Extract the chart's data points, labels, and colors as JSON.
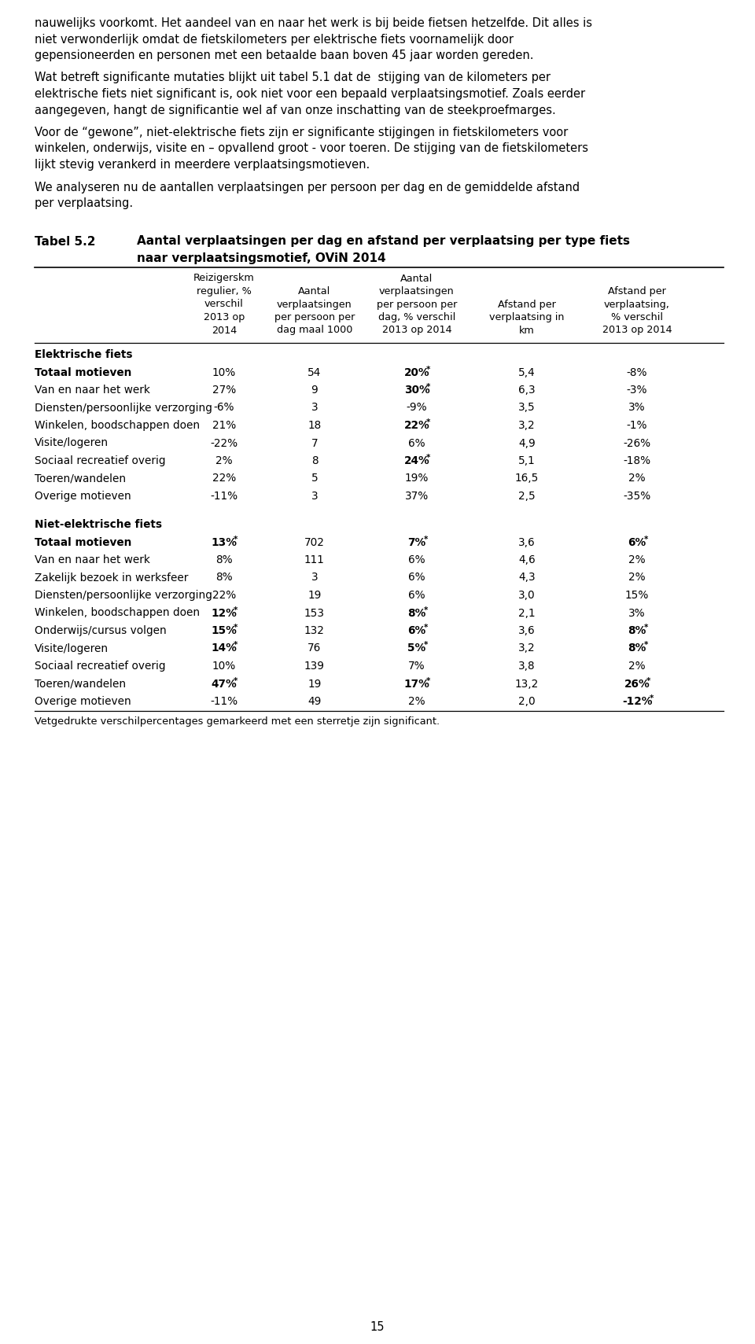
{
  "page_text": [
    "nauwelijks voorkomt. Het aandeel van en naar het werk is bij beide fietsen hetzelfde. Dit alles is",
    "niet verwonderlijk omdat de fietskilometers per elektrische fiets voornamelijk door",
    "gepensioneerden en personen met een betaalde baan boven 45 jaar worden gereden.",
    "",
    "Wat betreft significante mutaties blijkt uit tabel 5.1 dat de  stijging van de kilometers per",
    "elektrische fiets niet significant is, ook niet voor een bepaald verplaatsingsmotief. Zoals eerder",
    "aangegeven, hangt de significantie wel af van onze inschatting van de steekproefmarges.",
    "",
    "Voor de “gewone”, niet-elektrische fiets zijn er significante stijgingen in fietskilometers voor",
    "winkelen, onderwijs, visite en – opvallend groot - voor toeren. De stijging van de fietskilometers",
    "lijkt stevig verankerd in meerdere verplaatsingsmotieven.",
    "",
    "We analyseren nu de aantallen verplaatsingen per persoon per dag en de gemiddelde afstand",
    "per verplaatsing."
  ],
  "tabel_label": "Tabel 5.2",
  "tabel_title_line1": "Aantal verplaatsingen per dag en afstand per verplaatsing per type fiets",
  "tabel_title_line2": "naar verplaatsingsmotief, OViN 2014",
  "col_headers": [
    [
      "Reizigerskm",
      "regulier, %",
      "verschil",
      "2013 op",
      "2014"
    ],
    [
      "Aantal",
      "verplaatsingen",
      "per persoon per",
      "dag maal 1000"
    ],
    [
      "Aantal",
      "verplaatsingen",
      "per persoon per",
      "dag, % verschil",
      "2013 op 2014"
    ],
    [
      "Afstand per",
      "verplaatsing in",
      "km"
    ],
    [
      "Afstand per",
      "verplaatsing,",
      "% verschil",
      "2013 op 2014"
    ]
  ],
  "section1_label": "Elektrische fiets",
  "section1_rows": [
    {
      "label": "Totaal motieven",
      "bold_label": true,
      "cols": [
        {
          "text": "10%",
          "bold": false,
          "star": false
        },
        {
          "text": "54",
          "bold": false,
          "star": false
        },
        {
          "text": "20%",
          "bold": true,
          "star": true
        },
        {
          "text": "5,4",
          "bold": false,
          "star": false
        },
        {
          "text": "-8%",
          "bold": false,
          "star": false
        }
      ]
    },
    {
      "label": "Van en naar het werk",
      "bold_label": false,
      "cols": [
        {
          "text": "27%",
          "bold": false,
          "star": false
        },
        {
          "text": "9",
          "bold": false,
          "star": false
        },
        {
          "text": "30%",
          "bold": true,
          "star": true
        },
        {
          "text": "6,3",
          "bold": false,
          "star": false
        },
        {
          "text": "-3%",
          "bold": false,
          "star": false
        }
      ]
    },
    {
      "label": "Diensten/persoonlijke verzorging",
      "bold_label": false,
      "cols": [
        {
          "text": "-6%",
          "bold": false,
          "star": false
        },
        {
          "text": "3",
          "bold": false,
          "star": false
        },
        {
          "text": "-9%",
          "bold": false,
          "star": false
        },
        {
          "text": "3,5",
          "bold": false,
          "star": false
        },
        {
          "text": "3%",
          "bold": false,
          "star": false
        }
      ]
    },
    {
      "label": "Winkelen, boodschappen doen",
      "bold_label": false,
      "cols": [
        {
          "text": "21%",
          "bold": false,
          "star": false
        },
        {
          "text": "18",
          "bold": false,
          "star": false
        },
        {
          "text": "22%",
          "bold": true,
          "star": true
        },
        {
          "text": "3,2",
          "bold": false,
          "star": false
        },
        {
          "text": "-1%",
          "bold": false,
          "star": false
        }
      ]
    },
    {
      "label": "Visite/logeren",
      "bold_label": false,
      "cols": [
        {
          "text": "-22%",
          "bold": false,
          "star": false
        },
        {
          "text": "7",
          "bold": false,
          "star": false
        },
        {
          "text": "6%",
          "bold": false,
          "star": false
        },
        {
          "text": "4,9",
          "bold": false,
          "star": false
        },
        {
          "text": "-26%",
          "bold": false,
          "star": false
        }
      ]
    },
    {
      "label": "Sociaal recreatief overig",
      "bold_label": false,
      "cols": [
        {
          "text": "2%",
          "bold": false,
          "star": false
        },
        {
          "text": "8",
          "bold": false,
          "star": false
        },
        {
          "text": "24%",
          "bold": true,
          "star": true
        },
        {
          "text": "5,1",
          "bold": false,
          "star": false
        },
        {
          "text": "-18%",
          "bold": false,
          "star": false
        }
      ]
    },
    {
      "label": "Toeren/wandelen",
      "bold_label": false,
      "cols": [
        {
          "text": "22%",
          "bold": false,
          "star": false
        },
        {
          "text": "5",
          "bold": false,
          "star": false
        },
        {
          "text": "19%",
          "bold": false,
          "star": false
        },
        {
          "text": "16,5",
          "bold": false,
          "star": false
        },
        {
          "text": "2%",
          "bold": false,
          "star": false
        }
      ]
    },
    {
      "label": "Overige motieven",
      "bold_label": false,
      "cols": [
        {
          "text": "-11%",
          "bold": false,
          "star": false
        },
        {
          "text": "3",
          "bold": false,
          "star": false
        },
        {
          "text": "37%",
          "bold": false,
          "star": false
        },
        {
          "text": "2,5",
          "bold": false,
          "star": false
        },
        {
          "text": "-35%",
          "bold": false,
          "star": false
        }
      ]
    }
  ],
  "section2_label": "Niet-elektrische fiets",
  "section2_rows": [
    {
      "label": "Totaal motieven",
      "bold_label": true,
      "cols": [
        {
          "text": "13%",
          "bold": true,
          "star": true
        },
        {
          "text": "702",
          "bold": false,
          "star": false
        },
        {
          "text": "7%",
          "bold": true,
          "star": true
        },
        {
          "text": "3,6",
          "bold": false,
          "star": false
        },
        {
          "text": "6%",
          "bold": true,
          "star": true
        }
      ]
    },
    {
      "label": "Van en naar het werk",
      "bold_label": false,
      "cols": [
        {
          "text": "8%",
          "bold": false,
          "star": false
        },
        {
          "text": "111",
          "bold": false,
          "star": false
        },
        {
          "text": "6%",
          "bold": false,
          "star": false
        },
        {
          "text": "4,6",
          "bold": false,
          "star": false
        },
        {
          "text": "2%",
          "bold": false,
          "star": false
        }
      ]
    },
    {
      "label": "Zakelijk bezoek in werksfeer",
      "bold_label": false,
      "cols": [
        {
          "text": "8%",
          "bold": false,
          "star": false
        },
        {
          "text": "3",
          "bold": false,
          "star": false
        },
        {
          "text": "6%",
          "bold": false,
          "star": false
        },
        {
          "text": "4,3",
          "bold": false,
          "star": false
        },
        {
          "text": "2%",
          "bold": false,
          "star": false
        }
      ]
    },
    {
      "label": "Diensten/persoonlijke verzorging",
      "bold_label": false,
      "cols": [
        {
          "text": "22%",
          "bold": false,
          "star": false
        },
        {
          "text": "19",
          "bold": false,
          "star": false
        },
        {
          "text": "6%",
          "bold": false,
          "star": false
        },
        {
          "text": "3,0",
          "bold": false,
          "star": false
        },
        {
          "text": "15%",
          "bold": false,
          "star": false
        }
      ]
    },
    {
      "label": "Winkelen, boodschappen doen",
      "bold_label": false,
      "cols": [
        {
          "text": "12%",
          "bold": true,
          "star": true,
          "old_style_star": true
        },
        {
          "text": "153",
          "bold": false,
          "star": false
        },
        {
          "text": "8%",
          "bold": true,
          "star": true
        },
        {
          "text": "2,1",
          "bold": false,
          "star": false
        },
        {
          "text": "3%",
          "bold": false,
          "star": false
        }
      ]
    },
    {
      "label": "Onderwijs/cursus volgen",
      "bold_label": false,
      "cols": [
        {
          "text": "15%",
          "bold": true,
          "star": true
        },
        {
          "text": "132",
          "bold": false,
          "star": false
        },
        {
          "text": "6%",
          "bold": true,
          "star": true
        },
        {
          "text": "3,6",
          "bold": false,
          "star": false
        },
        {
          "text": "8%",
          "bold": true,
          "star": true
        }
      ]
    },
    {
      "label": "Visite/logeren",
      "bold_label": false,
      "cols": [
        {
          "text": "14%",
          "bold": true,
          "star": true
        },
        {
          "text": "76",
          "bold": false,
          "star": false
        },
        {
          "text": "5%",
          "bold": true,
          "star": true
        },
        {
          "text": "3,2",
          "bold": false,
          "star": false
        },
        {
          "text": "8%",
          "bold": true,
          "star": true
        }
      ]
    },
    {
      "label": "Sociaal recreatief overig",
      "bold_label": false,
      "cols": [
        {
          "text": "10%",
          "bold": false,
          "star": false
        },
        {
          "text": "139",
          "bold": false,
          "star": false
        },
        {
          "text": "7%",
          "bold": false,
          "star": false
        },
        {
          "text": "3,8",
          "bold": false,
          "star": false
        },
        {
          "text": "2%",
          "bold": false,
          "star": false
        }
      ]
    },
    {
      "label": "Toeren/wandelen",
      "bold_label": false,
      "cols": [
        {
          "text": "47%",
          "bold": true,
          "star": true
        },
        {
          "text": "19",
          "bold": false,
          "star": false
        },
        {
          "text": "17%",
          "bold": true,
          "star": true
        },
        {
          "text": "13,2",
          "bold": false,
          "star": false
        },
        {
          "text": "26%",
          "bold": true,
          "star": true
        }
      ]
    },
    {
      "label": "Overige motieven",
      "bold_label": false,
      "cols": [
        {
          "text": "-11%",
          "bold": false,
          "star": false
        },
        {
          "text": "49",
          "bold": false,
          "star": false
        },
        {
          "text": "2%",
          "bold": false,
          "star": false
        },
        {
          "text": "2,0",
          "bold": false,
          "star": false
        },
        {
          "text": "-12%",
          "bold": true,
          "star": true
        }
      ]
    }
  ],
  "footnote": "Vetgedrukte verschilpercentages gemarkeerd met een sterretje zijn significant.",
  "page_number": "15"
}
